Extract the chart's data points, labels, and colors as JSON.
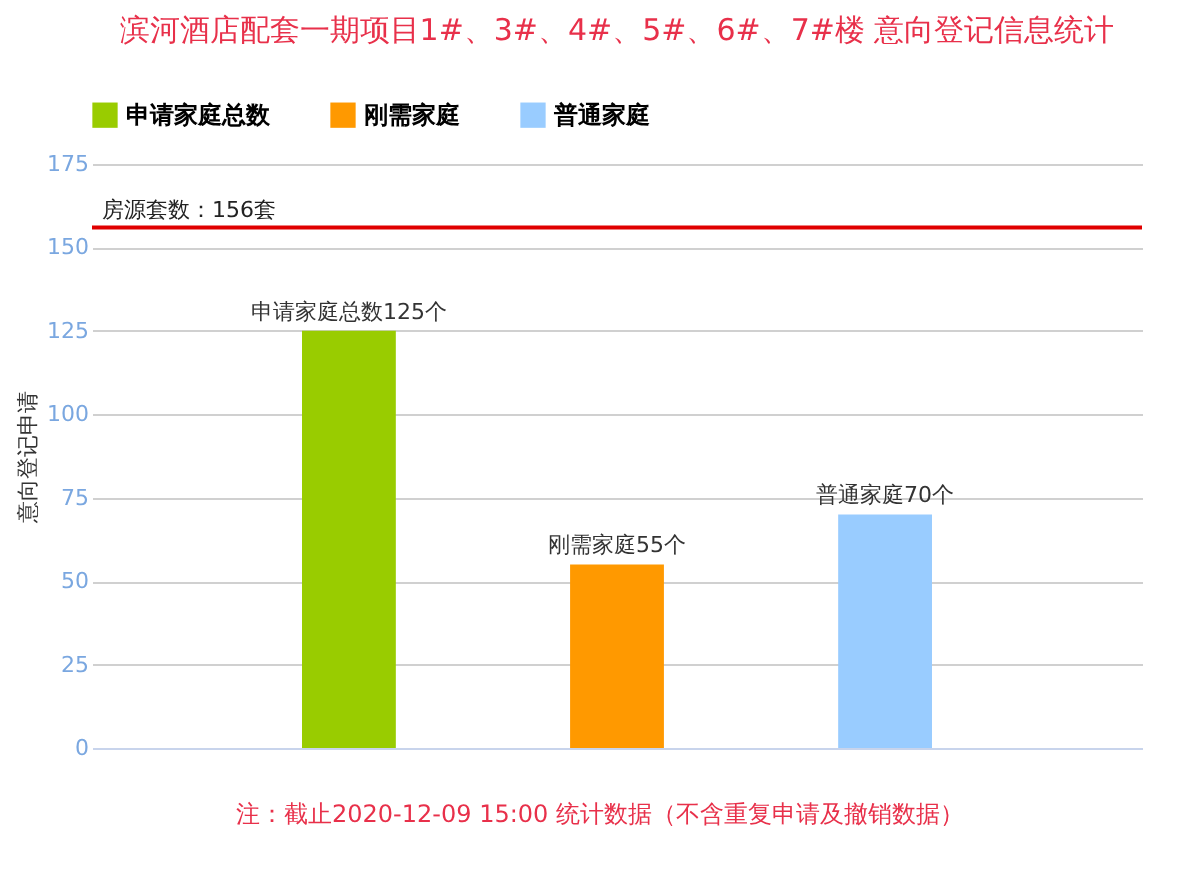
{
  "chart_data": {
    "type": "bar",
    "title": "滨河酒店配套一期项目1#、3#、4#、5#、6#、7#楼 意向登记信息统计",
    "ylabel": "意向登记申请",
    "categories": [
      null
    ],
    "series": [
      {
        "name": "申请家庭总数",
        "color": "#99cc00",
        "values": [
          125
        ],
        "value_labels": [
          "申请家庭总数125个"
        ]
      },
      {
        "name": "刚需家庭",
        "color": "#ff9900",
        "values": [
          55
        ],
        "value_labels": [
          "刚需家庭55个"
        ]
      },
      {
        "name": "普通家庭",
        "color": "#99ccff",
        "values": [
          70
        ],
        "value_labels": [
          "普通家庭70个"
        ]
      }
    ],
    "ylim": [
      0,
      175
    ],
    "yticks": [
      0,
      25,
      50,
      75,
      100,
      125,
      150,
      175
    ],
    "grid": "y",
    "legend": "top",
    "tick_labels": "y",
    "ref_lines": [
      {
        "axis": "y",
        "value": 156,
        "label": "房源套数：156套",
        "color": "#e00000"
      }
    ],
    "annotations": [
      "注：截止2020-12-09 15:00 统计数据（不含重复申请及撤销数据）"
    ]
  }
}
